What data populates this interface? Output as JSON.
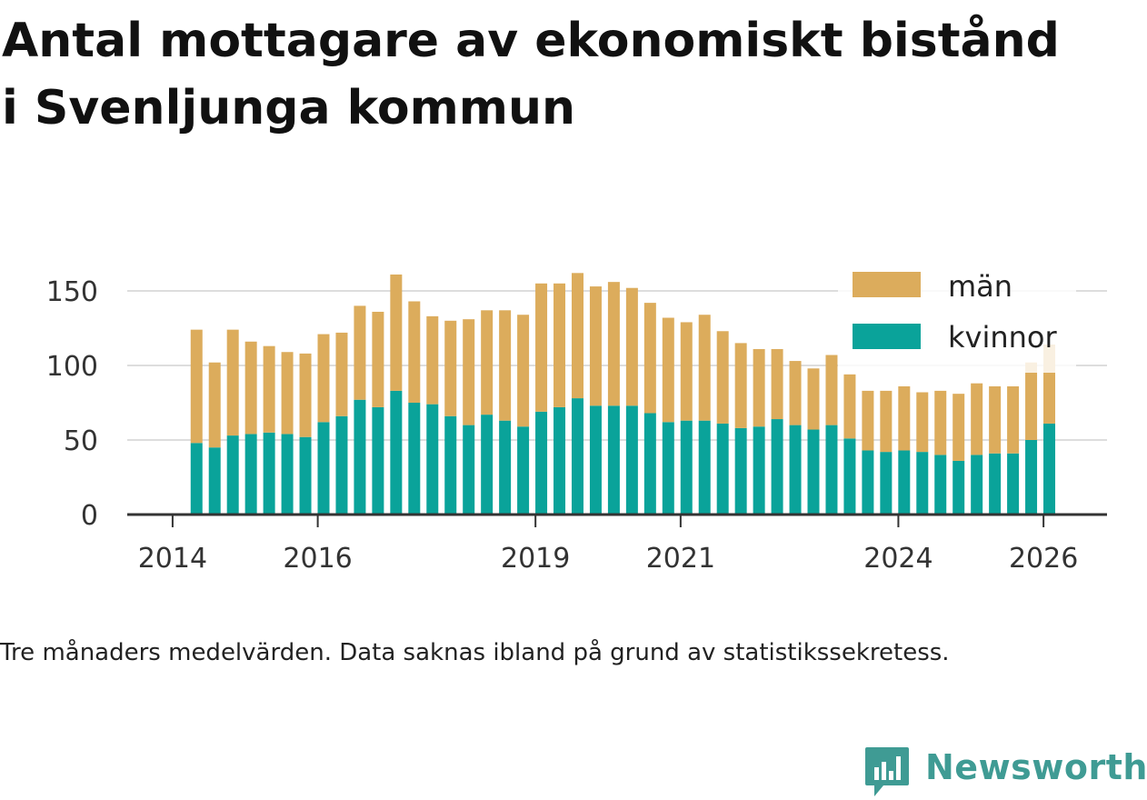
{
  "title_line1": "Antal mottagare av ekonomiskt bistånd",
  "title_line2": "i Svenljunga kommun",
  "caption": "Tre månaders medelvärden. Data saknas ibland på grund av statistikssekretess.",
  "brand": "Newsworthy",
  "colors": {
    "man": "#dcac5c",
    "kvinnor": "#0aa39a",
    "brand": "#3f9b94",
    "grid": "#dddddd",
    "axis": "#333333"
  },
  "chart_data": {
    "type": "bar",
    "stacked": true,
    "title": "Antal mottagare av ekonomiskt bistånd i Svenljunga kommun",
    "xlabel": "",
    "ylabel": "",
    "ylim": [
      0,
      170
    ],
    "yticks": [
      0,
      50,
      100,
      150
    ],
    "xticks": [
      {
        "label": "2014",
        "value": 2014.0
      },
      {
        "label": "2016",
        "value": 2016.0
      },
      {
        "label": "2019",
        "value": 2019.0
      },
      {
        "label": "2021",
        "value": 2021.0
      },
      {
        "label": "2024",
        "value": 2024.0
      },
      {
        "label": "2026",
        "value": 2026.0
      }
    ],
    "xlim": [
      2013.375,
      2026.875
    ],
    "grid": true,
    "legend_position": "top-right",
    "x": [
      2014.33,
      2014.58,
      2014.83,
      2015.08,
      2015.33,
      2015.58,
      2015.83,
      2016.08,
      2016.33,
      2016.58,
      2016.83,
      2017.08,
      2017.33,
      2017.58,
      2017.83,
      2018.08,
      2018.33,
      2018.58,
      2018.83,
      2019.08,
      2019.33,
      2019.58,
      2019.83,
      2020.08,
      2020.33,
      2020.58,
      2020.83,
      2021.08,
      2021.33,
      2021.58,
      2021.83,
      2022.08,
      2022.33,
      2022.58,
      2022.83,
      2023.08,
      2023.33,
      2023.58,
      2023.83,
      2024.08,
      2024.33,
      2024.58,
      2024.83,
      2025.08,
      2025.33,
      2025.58,
      2025.83,
      2026.08
    ],
    "series": [
      {
        "name": "kvinnor",
        "values": [
          48,
          45,
          53,
          54,
          55,
          54,
          52,
          62,
          66,
          77,
          72,
          83,
          75,
          74,
          66,
          60,
          67,
          63,
          59,
          69,
          72,
          78,
          73,
          73,
          73,
          68,
          62,
          63,
          63,
          61,
          58,
          59,
          64,
          60,
          57,
          60,
          51,
          43,
          42,
          43,
          42,
          40,
          36,
          40,
          41,
          41,
          50,
          61
        ]
      },
      {
        "name": "män",
        "values": [
          76,
          57,
          71,
          62,
          58,
          55,
          56,
          59,
          56,
          63,
          64,
          78,
          68,
          59,
          64,
          71,
          70,
          74,
          75,
          86,
          83,
          84,
          80,
          83,
          79,
          74,
          70,
          66,
          71,
          62,
          57,
          52,
          47,
          43,
          41,
          47,
          43,
          40,
          41,
          43,
          40,
          43,
          45,
          48,
          45,
          45,
          52,
          53
        ]
      }
    ],
    "legend": [
      "män",
      "kvinnor"
    ]
  }
}
